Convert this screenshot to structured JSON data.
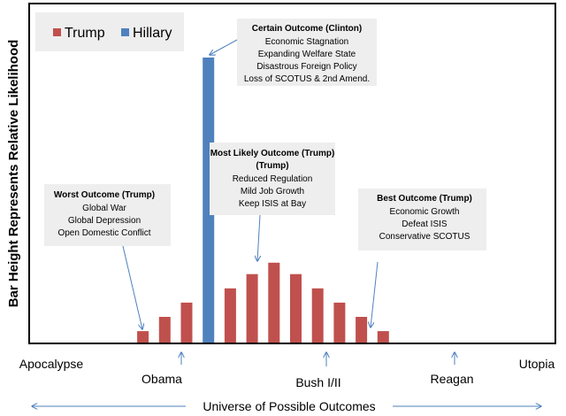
{
  "chart_data": {
    "type": "bar",
    "ylabel": "Bar Height Represents Relative Likelihood",
    "xlabel": "Universe of Possible Outcomes",
    "y_scale": "relative (unlabeled)",
    "legend": {
      "position": "top-left",
      "entries": [
        {
          "name": "Trump",
          "color": "#c0504d"
        },
        {
          "name": "Hillary",
          "color": "#4f81bd"
        }
      ]
    },
    "series": [
      {
        "name": "Trump",
        "color": "#c0504d",
        "slots": [
          3,
          4,
          5,
          7,
          8,
          9,
          10,
          11,
          12,
          13,
          14
        ],
        "values": [
          0.04,
          0.09,
          0.14,
          0.19,
          0.24,
          0.28,
          0.24,
          0.19,
          0.14,
          0.09,
          0.04
        ]
      },
      {
        "name": "Hillary",
        "color": "#4f81bd",
        "slots": [
          6
        ],
        "values": [
          1.0
        ]
      }
    ],
    "x_labels": [
      {
        "text": "Apocalypse",
        "arrow": false
      },
      {
        "text": "Obama",
        "arrow": true
      },
      {
        "text": "Bush I/II",
        "arrow": true
      },
      {
        "text": "Reagan",
        "arrow": true
      },
      {
        "text": "Utopia",
        "arrow": false
      }
    ],
    "annotations": [
      {
        "title": "Certain Outcome (Clinton)",
        "lines": [
          "Economic Stagnation",
          "Expanding Welfare State",
          "Disastrous Foreign Policy",
          "Loss of SCOTUS & 2nd Amend."
        ]
      },
      {
        "title": "Most Likely Outcome (Trump)",
        "lines": [
          "Reduced Regulation",
          "Mild Job Growth",
          "Keep ISIS at Bay"
        ]
      },
      {
        "title": "Worst Outcome (Trump)",
        "lines": [
          "Global War",
          "Global Depression",
          "Open Domestic Conflict"
        ]
      },
      {
        "title": "Best Outcome (Trump)",
        "lines": [
          "Economic Growth",
          "Defeat ISIS",
          "Conservative SCOTUS"
        ]
      }
    ],
    "grid": false
  }
}
